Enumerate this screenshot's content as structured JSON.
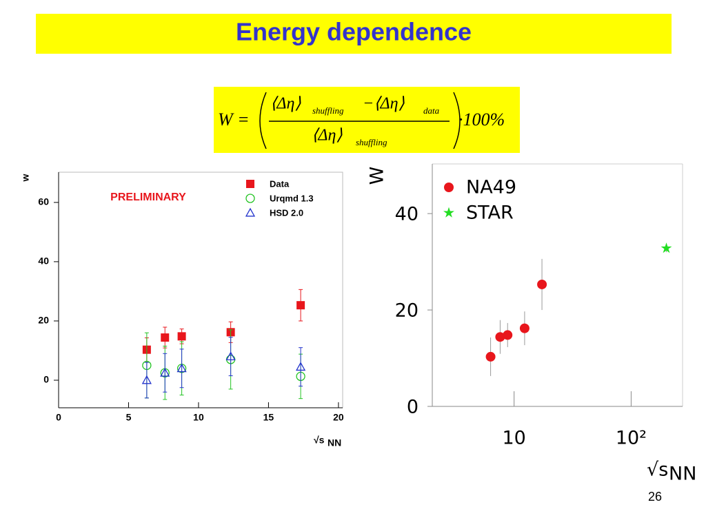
{
  "slide": {
    "title": "Energy dependence",
    "page_number": "26",
    "formula": {
      "lhs": "W =",
      "num_a": "⟨Δη⟩",
      "num_a_sub": "shuffling",
      "num_b": "−⟨Δη⟩",
      "num_b_sub": "data",
      "den": "⟨Δη⟩",
      "den_sub": "shuffling",
      "factor": "·100%"
    }
  },
  "chart_data": [
    {
      "type": "scatter",
      "ylabel": "w",
      "xlabel": "√s",
      "xlabel_sub": "NN",
      "annotation": "PRELIMINARY",
      "xlim": [
        0,
        20.3
      ],
      "ylim": [
        -9.3,
        70.2
      ],
      "xticks": [
        0,
        5,
        10,
        15,
        20
      ],
      "yticks": [
        0,
        20,
        40,
        60
      ],
      "log_x": false,
      "legend": "upper right",
      "series": [
        {
          "name": "Data",
          "color": "#e8161c",
          "marker": "square",
          "x": [
            6.3,
            7.6,
            8.8,
            12.3,
            17.3
          ],
          "values": [
            10.3,
            14.4,
            14.8,
            16.2,
            25.3
          ],
          "errors": [
            4,
            3.5,
            2.5,
            3.5,
            5.3
          ]
        },
        {
          "name": "Urqmd 1.3",
          "color": "#22c322",
          "marker": "circle",
          "x": [
            6.3,
            7.6,
            8.8,
            12.3,
            17.3
          ],
          "values": [
            5,
            2.5,
            4,
            7,
            1.3
          ],
          "errors": [
            11,
            9,
            9,
            10,
            7.5
          ]
        },
        {
          "name": "HSD 2.0",
          "color": "#2233cc",
          "marker": "triangle",
          "x": [
            6.3,
            7.6,
            8.8,
            12.3,
            17.3
          ],
          "values": [
            0,
            2.5,
            4,
            8,
            4.5
          ],
          "errors": [
            6,
            6.5,
            6.5,
            6.5,
            6.5
          ]
        }
      ]
    },
    {
      "type": "scatter",
      "ylabel": "W",
      "xlabel": "√s",
      "xlabel_sub": "NN",
      "xlim": [
        2,
        275
      ],
      "ylim": [
        0,
        50.3
      ],
      "xticks": [
        10,
        {
          "value": 100,
          "label": "10²"
        }
      ],
      "yticks": [
        0,
        20,
        40
      ],
      "log_x": true,
      "legend": "upper left",
      "series": [
        {
          "name": "NA49",
          "color": "#e8161c",
          "marker": "circle",
          "x": [
            6.3,
            7.6,
            8.8,
            12.3,
            17.3
          ],
          "values": [
            10.3,
            14.4,
            14.8,
            16.2,
            25.3
          ],
          "errors": [
            4,
            3.5,
            2.5,
            3.5,
            5.3
          ]
        },
        {
          "name": "STAR",
          "color": "#22dd22",
          "marker": "star",
          "x": [
            200
          ],
          "values": [
            32.8
          ],
          "errors": [
            0.8
          ]
        }
      ]
    }
  ]
}
